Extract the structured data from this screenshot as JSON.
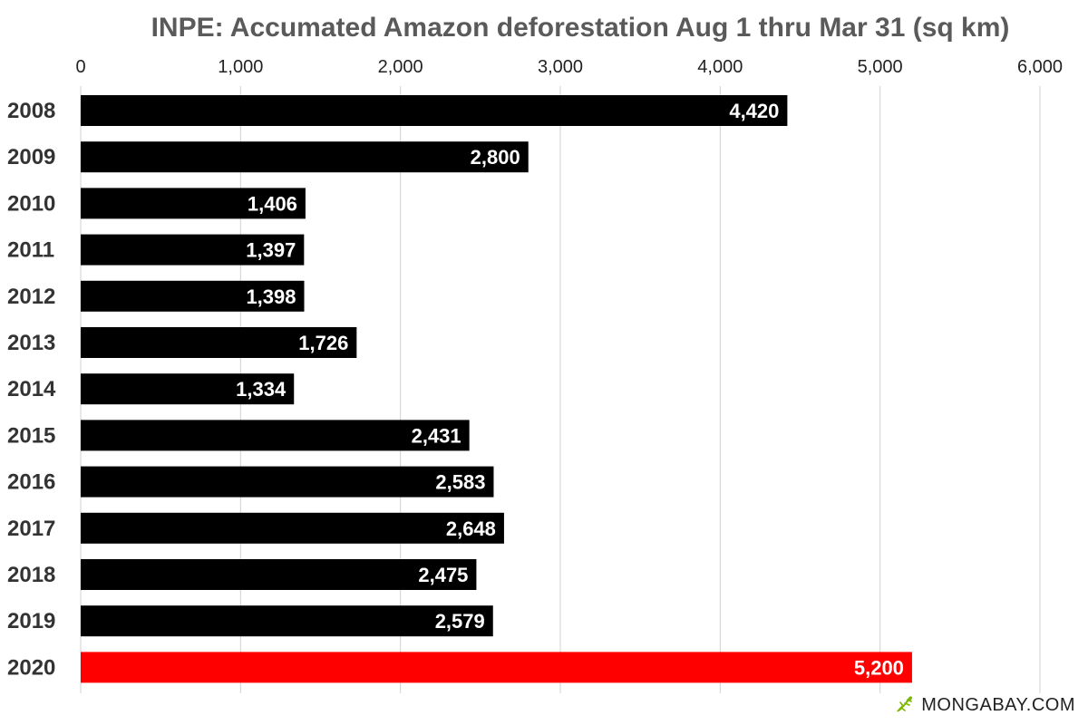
{
  "chart_data": {
    "type": "bar",
    "orientation": "horizontal",
    "title": "INPE: Accumated Amazon deforestation Aug 1 thru Mar 31 (sq km)",
    "categories": [
      "2008",
      "2009",
      "2010",
      "2011",
      "2012",
      "2013",
      "2014",
      "2015",
      "2016",
      "2017",
      "2018",
      "2019",
      "2020"
    ],
    "values": [
      4420,
      2800,
      1406,
      1397,
      1398,
      1726,
      1334,
      2431,
      2583,
      2648,
      2475,
      2579,
      5200
    ],
    "value_labels": [
      "4,420",
      "2,800",
      "1,406",
      "1,397",
      "1,398",
      "1,726",
      "1,334",
      "2,431",
      "2,583",
      "2,648",
      "2,475",
      "2,579",
      "5,200"
    ],
    "xlim": [
      0,
      6000
    ],
    "xticks": [
      0,
      1000,
      2000,
      3000,
      4000,
      5000,
      6000
    ],
    "xtick_labels": [
      "0",
      "1,000",
      "2,000",
      "3,000",
      "4,000",
      "5,000",
      "6,000"
    ],
    "xaxis_position": "top",
    "grid": true,
    "colors": {
      "default": "#000000",
      "highlight": "#ff0000"
    },
    "highlight_category": "2020",
    "xlabel": "",
    "ylabel": ""
  },
  "branding": {
    "text": "MONGABAY.COM",
    "icon": "gecko-icon",
    "icon_color": "#7ab800"
  }
}
